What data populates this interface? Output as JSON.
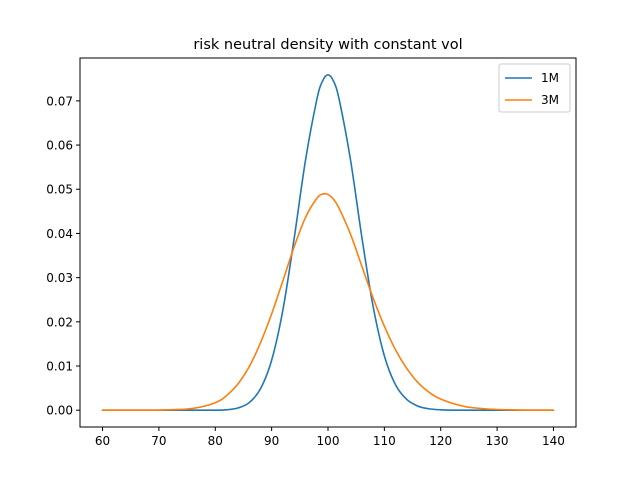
{
  "chart_data": {
    "type": "line",
    "title": "risk neutral density with constant vol",
    "xlabel": "",
    "ylabel": "",
    "xlim": [
      56,
      144
    ],
    "ylim": [
      -0.0038,
      0.0797
    ],
    "xticks": [
      60,
      70,
      80,
      90,
      100,
      110,
      120,
      130,
      140
    ],
    "xtick_labels": [
      "60",
      "70",
      "80",
      "90",
      "100",
      "110",
      "120",
      "130",
      "140"
    ],
    "yticks": [
      0.0,
      0.01,
      0.02,
      0.03,
      0.04,
      0.05,
      0.06,
      0.07
    ],
    "ytick_labels": [
      "0.00",
      "0.01",
      "0.02",
      "0.03",
      "0.04",
      "0.05",
      "0.06",
      "0.07"
    ],
    "grid": false,
    "legend": {
      "location": "upper right"
    },
    "x": [
      60,
      64,
      68,
      72,
      76,
      80,
      82,
      84,
      86,
      88,
      90,
      92,
      94,
      96,
      98,
      99,
      100,
      101,
      102,
      104,
      106,
      108,
      110,
      112,
      114,
      116,
      118,
      120,
      124,
      128,
      132,
      136,
      140
    ],
    "series": [
      {
        "name": "1M",
        "color": "#1f77b4",
        "values": [
          0.0,
          0.0,
          0.0,
          0.0,
          0.0,
          0.0,
          0.0001,
          0.0005,
          0.0017,
          0.0048,
          0.0113,
          0.0227,
          0.0389,
          0.0565,
          0.0702,
          0.0744,
          0.0759,
          0.0744,
          0.0702,
          0.0566,
          0.0392,
          0.0235,
          0.0123,
          0.0057,
          0.0024,
          0.0009,
          0.0003,
          0.0001,
          0.0,
          0.0,
          0.0,
          0.0,
          0.0
        ]
      },
      {
        "name": "3M",
        "color": "#ff7f0e",
        "values": [
          0.0,
          0.0,
          0.0,
          0.0001,
          0.0004,
          0.0017,
          0.0033,
          0.0059,
          0.0098,
          0.0152,
          0.0218,
          0.0293,
          0.037,
          0.0436,
          0.0479,
          0.0489,
          0.0488,
          0.0477,
          0.0456,
          0.0398,
          0.0326,
          0.0254,
          0.019,
          0.0136,
          0.0094,
          0.0062,
          0.004,
          0.0025,
          0.0009,
          0.0003,
          0.0001,
          0.0,
          0.0
        ]
      }
    ]
  }
}
